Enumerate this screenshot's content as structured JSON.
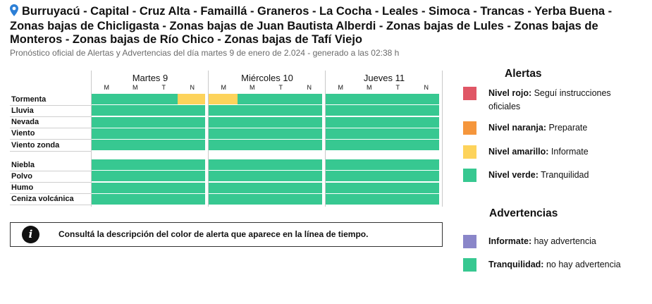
{
  "header": {
    "title": "Burruyacú - Capital - Cruz Alta - Famaillá - Graneros - La Cocha - Leales - Simoca - Trancas - Yerba Buena - Zonas bajas de Chicligasta - Zonas bajas de Juan Bautista Alberdi - Zonas bajas de Lules - Zonas bajas de Monteros - Zonas bajas de Río Chico - Zonas bajas de Tafí Viejo",
    "subtitle": "Pronóstico oficial de Alertas y Advertencias del día martes 9 de enero de 2.024 - generado a las 02:38 h"
  },
  "days": [
    {
      "name": "Martes 9",
      "slots": [
        "M",
        "M",
        "T",
        "N"
      ]
    },
    {
      "name": "Miércoles 10",
      "slots": [
        "M",
        "M",
        "T",
        "N"
      ]
    },
    {
      "name": "Jueves 11",
      "slots": [
        "M",
        "M",
        "T",
        "N"
      ]
    }
  ],
  "colors": {
    "green": "#37c891",
    "yellow": "#fdd35b",
    "red": "#e05766",
    "orange": "#f5963c",
    "purple": "#8a86c9"
  },
  "alert_rows": [
    {
      "label": "Tormenta",
      "levels": [
        "green",
        "green",
        "green",
        "yellow",
        "yellow",
        "green",
        "green",
        "green",
        "green",
        "green",
        "green",
        "green"
      ]
    },
    {
      "label": "Lluvia",
      "levels": [
        "green",
        "green",
        "green",
        "green",
        "green",
        "green",
        "green",
        "green",
        "green",
        "green",
        "green",
        "green"
      ]
    },
    {
      "label": "Nevada",
      "levels": [
        "green",
        "green",
        "green",
        "green",
        "green",
        "green",
        "green",
        "green",
        "green",
        "green",
        "green",
        "green"
      ]
    },
    {
      "label": "Viento",
      "levels": [
        "green",
        "green",
        "green",
        "green",
        "green",
        "green",
        "green",
        "green",
        "green",
        "green",
        "green",
        "green"
      ]
    },
    {
      "label": "Viento zonda",
      "levels": [
        "green",
        "green",
        "green",
        "green",
        "green",
        "green",
        "green",
        "green",
        "green",
        "green",
        "green",
        "green"
      ]
    }
  ],
  "advisory_rows": [
    {
      "label": "Niebla",
      "levels": [
        "green",
        "green",
        "green",
        "green",
        "green",
        "green",
        "green",
        "green",
        "green",
        "green",
        "green",
        "green"
      ]
    },
    {
      "label": "Polvo",
      "levels": [
        "green",
        "green",
        "green",
        "green",
        "green",
        "green",
        "green",
        "green",
        "green",
        "green",
        "green",
        "green"
      ]
    },
    {
      "label": "Humo",
      "levels": [
        "green",
        "green",
        "green",
        "green",
        "green",
        "green",
        "green",
        "green",
        "green",
        "green",
        "green",
        "green"
      ]
    },
    {
      "label": "Ceniza volcánica",
      "levels": [
        "green",
        "green",
        "green",
        "green",
        "green",
        "green",
        "green",
        "green",
        "green",
        "green",
        "green",
        "green"
      ]
    }
  ],
  "info": {
    "icon": "info-icon",
    "text": "Consultá la descripción del color de alerta que aparece en la línea de tiempo."
  },
  "alerts_legend": {
    "title": "Alertas",
    "items": [
      {
        "color": "red",
        "strong": "Nivel rojo:",
        "text": " Seguí instrucciones oficiales"
      },
      {
        "color": "orange",
        "strong": "Nivel naranja:",
        "text": " Preparate"
      },
      {
        "color": "yellow",
        "strong": "Nivel amarillo:",
        "text": " Informate"
      },
      {
        "color": "green",
        "strong": "Nivel verde:",
        "text": " Tranquilidad"
      }
    ]
  },
  "advisories_legend": {
    "title": "Advertencias",
    "items": [
      {
        "color": "purple",
        "strong": "Informate:",
        "text": " hay advertencia"
      },
      {
        "color": "green",
        "strong": "Tranquilidad:",
        "text": " no hay advertencia"
      }
    ]
  }
}
